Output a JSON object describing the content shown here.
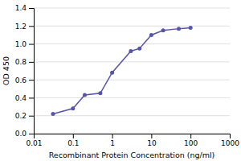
{
  "chart_data": {
    "type": "line",
    "xlabel": "Recombinant Protein Concentration (ng/ml)",
    "ylabel": "OD 450",
    "x": [
      0.031,
      0.1,
      0.2,
      0.5,
      1.0,
      3.0,
      5.0,
      10.0,
      20.0,
      50.0,
      100.0
    ],
    "series": [
      {
        "color": "#5555aa",
        "marker": "circle",
        "values": [
          0.22,
          0.28,
          0.43,
          0.45,
          0.68,
          0.92,
          0.95,
          1.1,
          1.15,
          1.17,
          1.18
        ]
      }
    ],
    "log": "x",
    "xlim": [
      0.01,
      1000
    ],
    "xticks": [
      0.01,
      0.1,
      1,
      10,
      100,
      1000
    ],
    "ylim": [
      0.0,
      1.4
    ],
    "yticks": [
      {
        "value": 0.0,
        "label": "0.0"
      },
      0.2,
      0.4,
      0.6,
      0.8,
      {
        "value": 1.0,
        "label": "1.0"
      },
      1.2,
      1.4
    ],
    "grid": "y"
  }
}
